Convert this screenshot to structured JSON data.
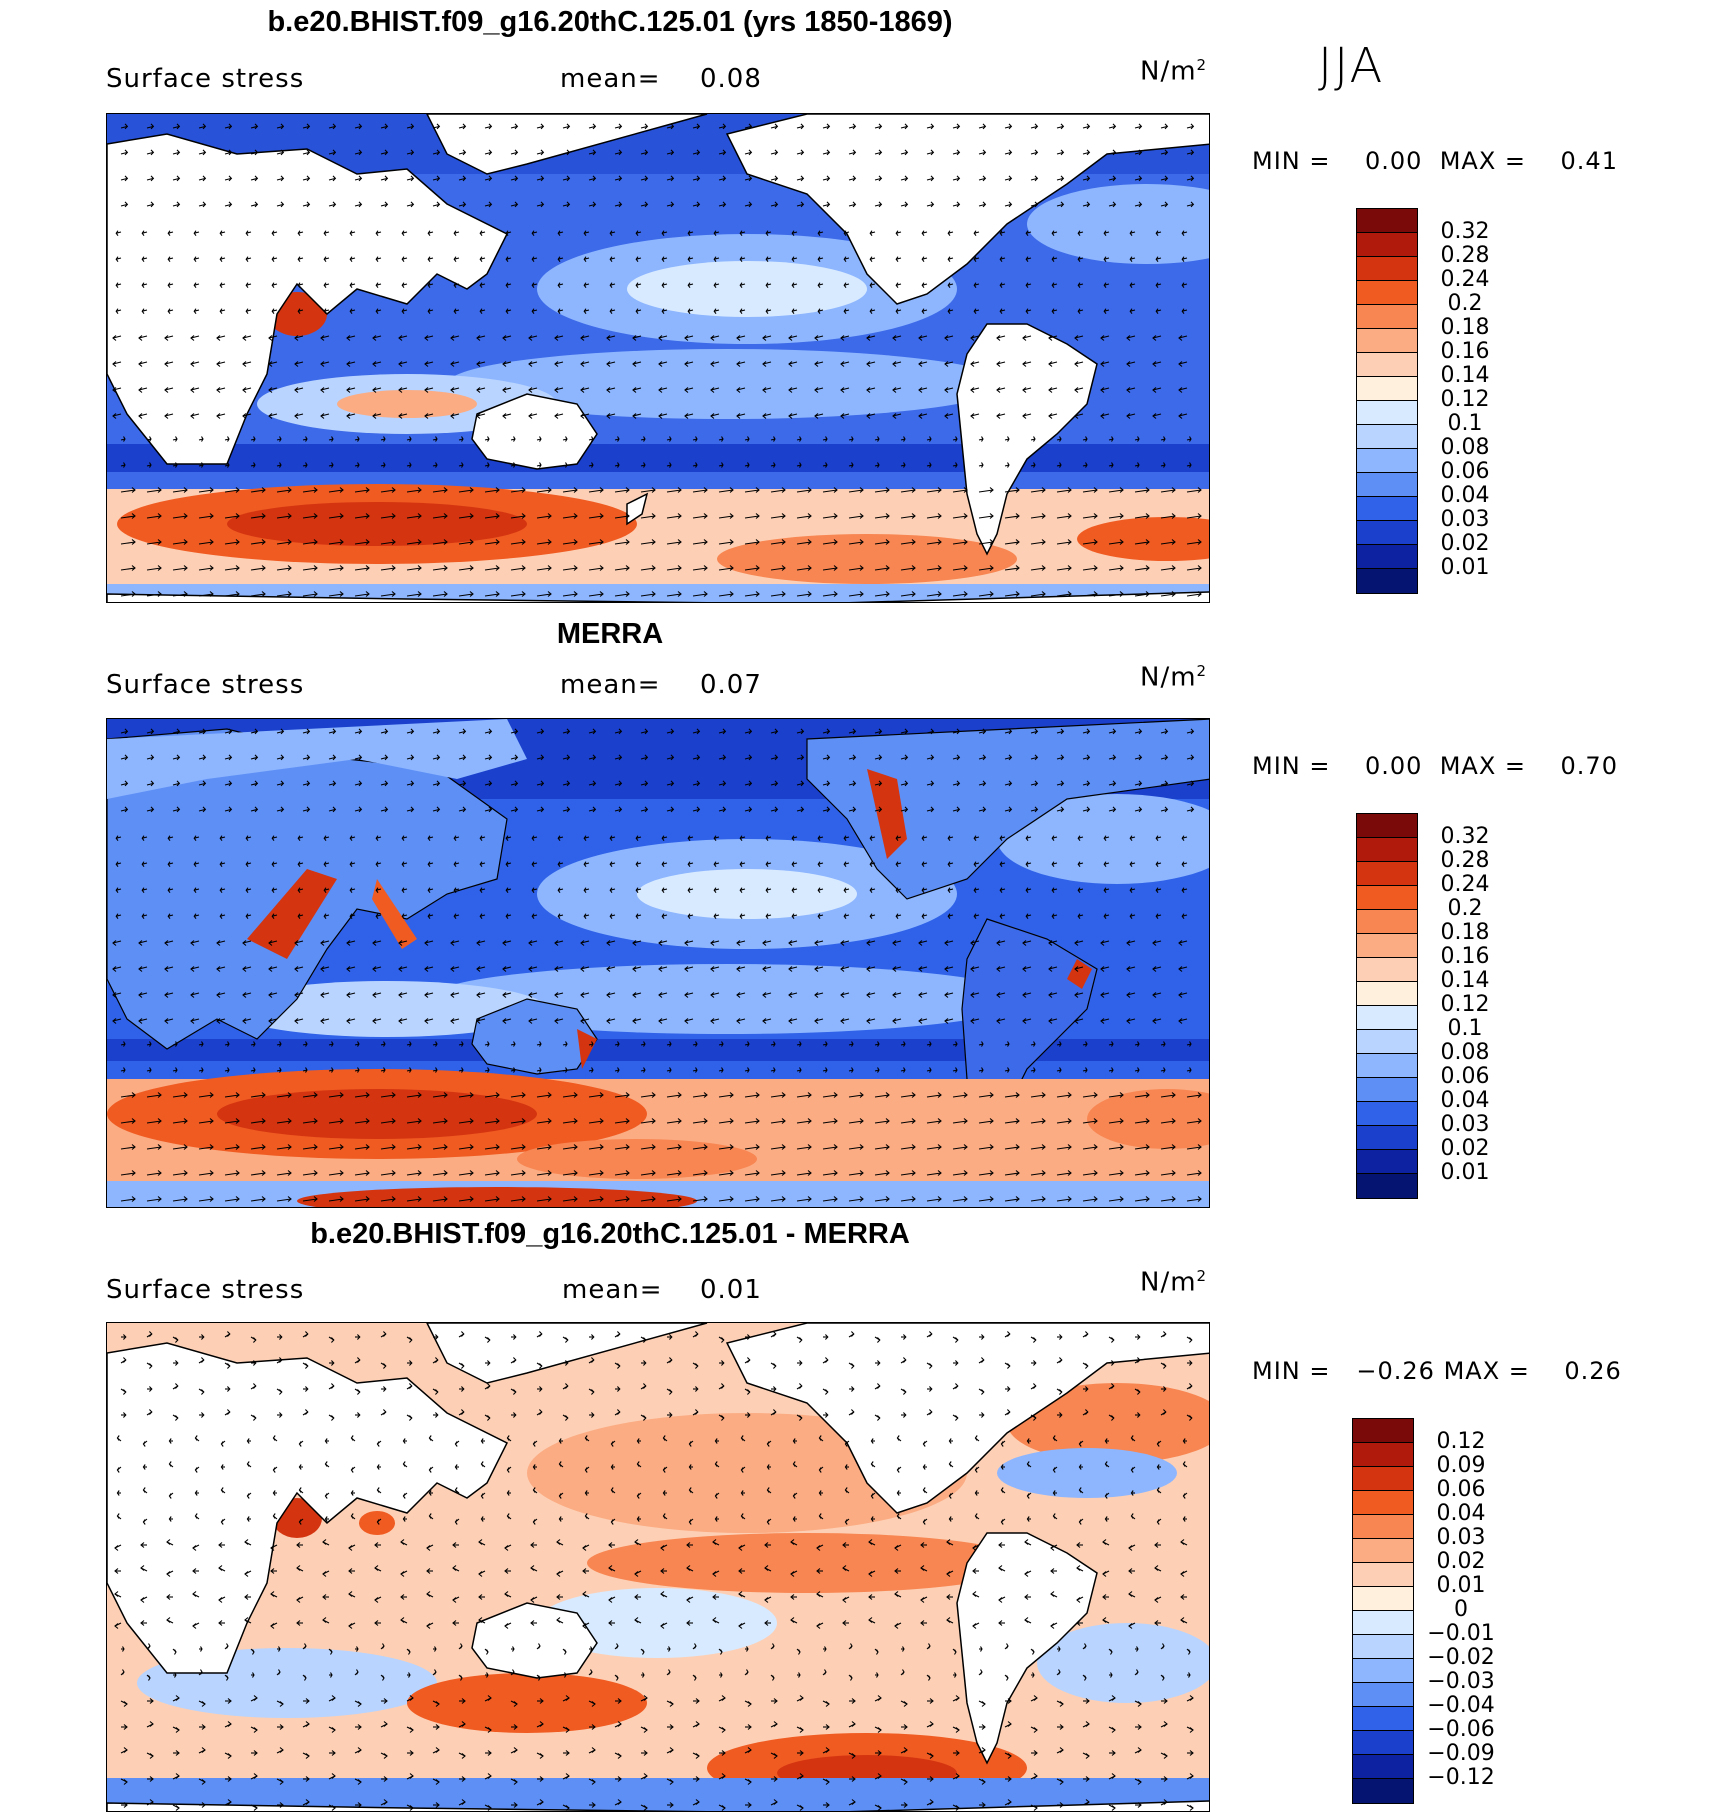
{
  "season": "JJA",
  "panels": [
    {
      "title": "b.e20.BHIST.f09_g16.20thC.125.01 (yrs 1850-1869)",
      "variable": "Surface stress",
      "mean_label": "mean=",
      "mean_value": "0.08",
      "units": "N/m",
      "units_exp": "2",
      "min_label": "MIN =",
      "min_value": "0.00",
      "max_label": "MAX =",
      "max_value": "0.41",
      "ticks": [
        "0.32",
        "0.28",
        "0.24",
        "0.2",
        "0.18",
        "0.16",
        "0.14",
        "0.12",
        "0.1",
        "0.08",
        "0.06",
        "0.04",
        "0.03",
        "0.02",
        "0.01"
      ],
      "colors": [
        "#7a0a0a",
        "#b01a0c",
        "#d43510",
        "#f05b22",
        "#f88652",
        "#fbac83",
        "#fdd0b5",
        "#fff0dd",
        "#d8eaff",
        "#b8d4ff",
        "#8db6ff",
        "#5e8ff5",
        "#2f62e8",
        "#1a40cc",
        "#0c22a0",
        "#051470"
      ]
    },
    {
      "title": "MERRA",
      "variable": "Surface stress",
      "mean_label": "mean=",
      "mean_value": "0.07",
      "units": "N/m",
      "units_exp": "2",
      "min_label": "MIN =",
      "min_value": "0.00",
      "max_label": "MAX =",
      "max_value": "0.70",
      "ticks": [
        "0.32",
        "0.28",
        "0.24",
        "0.2",
        "0.18",
        "0.16",
        "0.14",
        "0.12",
        "0.1",
        "0.08",
        "0.06",
        "0.04",
        "0.03",
        "0.02",
        "0.01"
      ],
      "colors": [
        "#7a0a0a",
        "#b01a0c",
        "#d43510",
        "#f05b22",
        "#f88652",
        "#fbac83",
        "#fdd0b5",
        "#fff0dd",
        "#d8eaff",
        "#b8d4ff",
        "#8db6ff",
        "#5e8ff5",
        "#2f62e8",
        "#1a40cc",
        "#0c22a0",
        "#051470"
      ]
    },
    {
      "title": "b.e20.BHIST.f09_g16.20thC.125.01 - MERRA",
      "variable": "Surface stress",
      "mean_label": "mean=",
      "mean_value": "0.01",
      "units": "N/m",
      "units_exp": "2",
      "min_label": "MIN =",
      "min_value": "−0.26",
      "max_label": "MAX =",
      "max_value": "0.26",
      "ticks": [
        "0.12",
        "0.09",
        "0.06",
        "0.04",
        "0.03",
        "0.02",
        "0.01",
        "0",
        "−0.01",
        "−0.02",
        "−0.03",
        "−0.04",
        "−0.06",
        "−0.09",
        "−0.12"
      ],
      "colors": [
        "#7a0a0a",
        "#b01a0c",
        "#d43510",
        "#f05b22",
        "#f88652",
        "#fbac83",
        "#fdd0b5",
        "#fff0dd",
        "#d8eaff",
        "#b8d4ff",
        "#8db6ff",
        "#5e8ff5",
        "#2f62e8",
        "#1a40cc",
        "#0c22a0",
        "#051470"
      ]
    }
  ]
}
